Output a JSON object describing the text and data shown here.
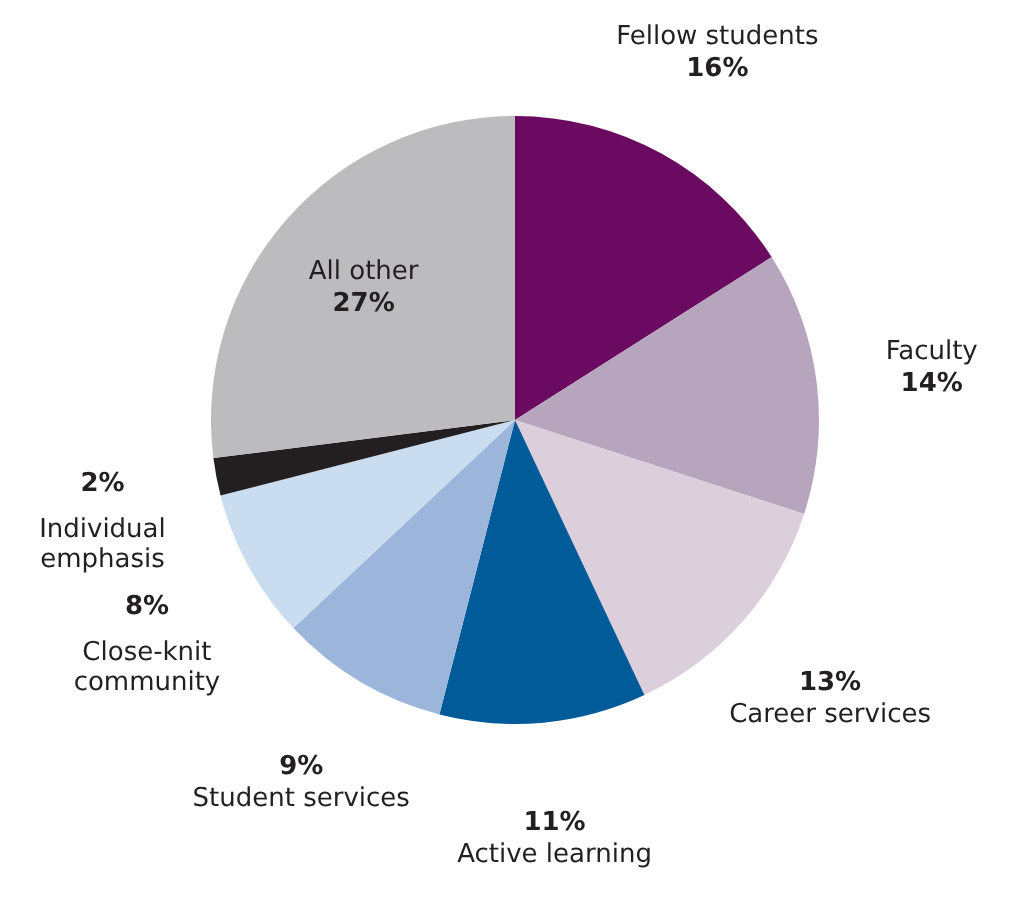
{
  "chart_data": {
    "type": "pie",
    "categories": [
      "Fellow students",
      "Faculty",
      "Career services",
      "Active learning",
      "Student services",
      "Close-knit community",
      "Individual emphasis",
      "All other"
    ],
    "values": [
      16,
      14,
      13,
      11,
      9,
      8,
      2,
      27
    ],
    "colors": [
      "#6a0a60",
      "#b6a5bc",
      "#dccfdc",
      "#005b98",
      "#9bb6da",
      "#cadcef",
      "#231f20",
      "#bcbcbe"
    ],
    "value_labels": [
      "16%",
      "14%",
      "13%",
      "11%",
      "9%",
      "8%",
      "2%",
      "27%"
    ]
  }
}
